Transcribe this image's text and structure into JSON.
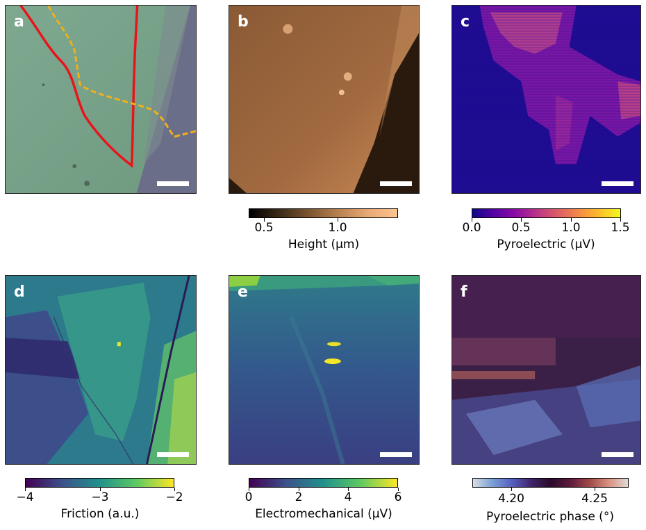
{
  "panels": [
    {
      "id": "a",
      "label": "a"
    },
    {
      "id": "b",
      "label": "b"
    },
    {
      "id": "c",
      "label": "c"
    },
    {
      "id": "d",
      "label": "d"
    },
    {
      "id": "e",
      "label": "e"
    },
    {
      "id": "f",
      "label": "f"
    }
  ],
  "colorbars": {
    "b": {
      "label": "Height (μm)",
      "ticks": [
        "0.5",
        "1.0"
      ],
      "colors": [
        "#000000",
        "#ffc590"
      ]
    },
    "c": {
      "label": "Pyroelectric (μV)",
      "ticks": [
        "0.0",
        "0.5",
        "1.0",
        "1.5"
      ],
      "colormap": "plasma"
    },
    "d": {
      "label": "Friction (a.u.)",
      "ticks": [
        "−4",
        "−3",
        "−2"
      ],
      "colormap": "viridis"
    },
    "e": {
      "label": "Electromechanical (μV)",
      "ticks": [
        "0",
        "2",
        "4",
        "6"
      ],
      "colormap": "viridis"
    },
    "f": {
      "label": "Pyroelectric phase (°)",
      "ticks": [
        "4.20",
        "4.25"
      ],
      "colormap": "twilight"
    }
  },
  "colors": {
    "outline_solid": "#e8141a",
    "outline_dashed": "#f2b01a",
    "scalebar": "#ffffff"
  }
}
